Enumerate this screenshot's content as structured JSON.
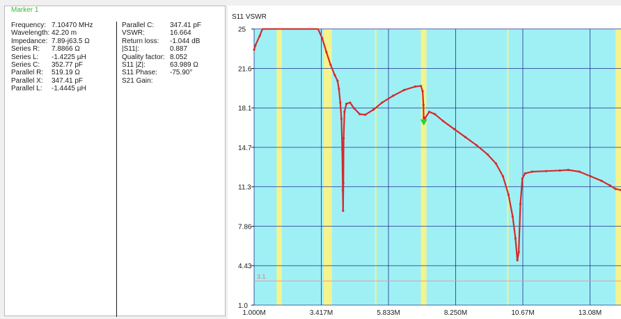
{
  "marker": {
    "title": "Marker 1",
    "left": [
      {
        "label": "Frequency:",
        "value": "7.10470 MHz"
      },
      {
        "label": "Wavelength:",
        "value": "42.20 m"
      },
      {
        "label": "Impedance:",
        "value": "7.89-j63.5 Ω"
      },
      {
        "label": "Series R:",
        "value": "7.8866 Ω"
      },
      {
        "label": "Series L:",
        "value": "-1.4225 µH"
      },
      {
        "label": "Series C:",
        "value": "352.77 pF"
      },
      {
        "label": "Parallel R:",
        "value": "519.19 Ω"
      },
      {
        "label": "Parallel X:",
        "value": "347.41 pF"
      },
      {
        "label": "Parallel L:",
        "value": "-1.4445 µH"
      }
    ],
    "right": [
      {
        "label": "Parallel C:",
        "value": "347.41 pF"
      },
      {
        "label": "VSWR:",
        "value": "16.664"
      },
      {
        "label": "Return loss:",
        "value": "-1.044 dB"
      },
      {
        "label": "|S11|:",
        "value": "0.887"
      },
      {
        "label": "Quality factor:",
        "value": "8.052"
      },
      {
        "label": "S11 |Z|:",
        "value": "63.989 Ω"
      },
      {
        "label": "S11 Phase:",
        "value": "-75.90°"
      },
      {
        "label": "S21 Gain:",
        "value": ""
      }
    ]
  },
  "chart_data": {
    "type": "line",
    "title": "S11 VSWR",
    "x_unit": "MHz",
    "x_ticks": [
      "1.000M",
      "3.417M",
      "5.833M",
      "8.250M",
      "10.67M",
      "13.08M"
    ],
    "y_ticks": [
      "25",
      "21.6",
      "18.1",
      "14.7",
      "11.3",
      "7.86",
      "4.43",
      "1.0"
    ],
    "xlim": [
      1.0,
      15.0
    ],
    "ylim": [
      1.0,
      25.0
    ],
    "reference_line": {
      "label": "3.1",
      "y": 3.1,
      "color": "#e0a0a0"
    },
    "bands": [
      {
        "from": 1.81,
        "to": 2.0
      },
      {
        "from": 3.5,
        "to": 3.8
      },
      {
        "from": 5.35,
        "to": 5.37
      },
      {
        "from": 7.0,
        "to": 7.2
      },
      {
        "from": 10.1,
        "to": 10.15
      },
      {
        "from": 14.0,
        "to": 14.35
      }
    ],
    "series": [
      {
        "color": "#d42a2a",
        "points": [
          [
            1.0,
            23.2
          ],
          [
            1.05,
            23.6
          ],
          [
            1.2,
            24.4
          ],
          [
            1.3,
            25.0
          ],
          [
            3.3,
            25.0
          ],
          [
            3.45,
            24.2
          ],
          [
            3.6,
            23.0
          ],
          [
            3.75,
            21.9
          ],
          [
            3.9,
            21.0
          ],
          [
            4.0,
            20.5
          ],
          [
            4.05,
            19.8
          ],
          [
            4.1,
            18.6
          ],
          [
            4.14,
            17.2
          ],
          [
            4.17,
            14.5
          ],
          [
            4.19,
            11.0
          ],
          [
            4.2,
            9.2
          ],
          [
            4.21,
            11.6
          ],
          [
            4.22,
            15.5
          ],
          [
            4.25,
            17.8
          ],
          [
            4.32,
            18.5
          ],
          [
            4.45,
            18.6
          ],
          [
            4.6,
            18.1
          ],
          [
            4.8,
            17.6
          ],
          [
            5.0,
            17.55
          ],
          [
            5.3,
            18.0
          ],
          [
            5.6,
            18.6
          ],
          [
            6.0,
            19.2
          ],
          [
            6.4,
            19.7
          ],
          [
            6.8,
            20.0
          ],
          [
            7.0,
            20.05
          ],
          [
            7.06,
            19.6
          ],
          [
            7.09,
            18.4
          ],
          [
            7.1,
            17.3
          ],
          [
            7.12,
            16.9
          ],
          [
            7.16,
            17.3
          ],
          [
            7.3,
            17.8
          ],
          [
            7.5,
            17.6
          ],
          [
            7.8,
            17.0
          ],
          [
            8.2,
            16.3
          ],
          [
            8.6,
            15.6
          ],
          [
            9.0,
            14.9
          ],
          [
            9.4,
            14.1
          ],
          [
            9.7,
            13.3
          ],
          [
            9.95,
            12.2
          ],
          [
            10.15,
            10.6
          ],
          [
            10.3,
            8.7
          ],
          [
            10.4,
            6.8
          ],
          [
            10.47,
            4.9
          ],
          [
            10.52,
            5.6
          ],
          [
            10.58,
            9.8
          ],
          [
            10.65,
            12.0
          ],
          [
            10.75,
            12.45
          ],
          [
            11.0,
            12.6
          ],
          [
            11.5,
            12.65
          ],
          [
            12.0,
            12.7
          ],
          [
            12.3,
            12.75
          ],
          [
            12.7,
            12.6
          ],
          [
            13.1,
            12.2
          ],
          [
            13.5,
            11.8
          ],
          [
            13.8,
            11.4
          ],
          [
            14.0,
            11.1
          ],
          [
            14.2,
            11.0
          ],
          [
            14.4,
            11.25
          ],
          [
            14.6,
            11.3
          ],
          [
            14.8,
            11.2
          ],
          [
            15.0,
            11.0
          ]
        ]
      }
    ],
    "marker": {
      "x": 7.1047,
      "y": 16.664,
      "color": "#33cc33"
    },
    "colors": {
      "plot_bg": "#9ff0f5",
      "band": "#f4f38d",
      "grid": "#1e2b8f"
    }
  }
}
